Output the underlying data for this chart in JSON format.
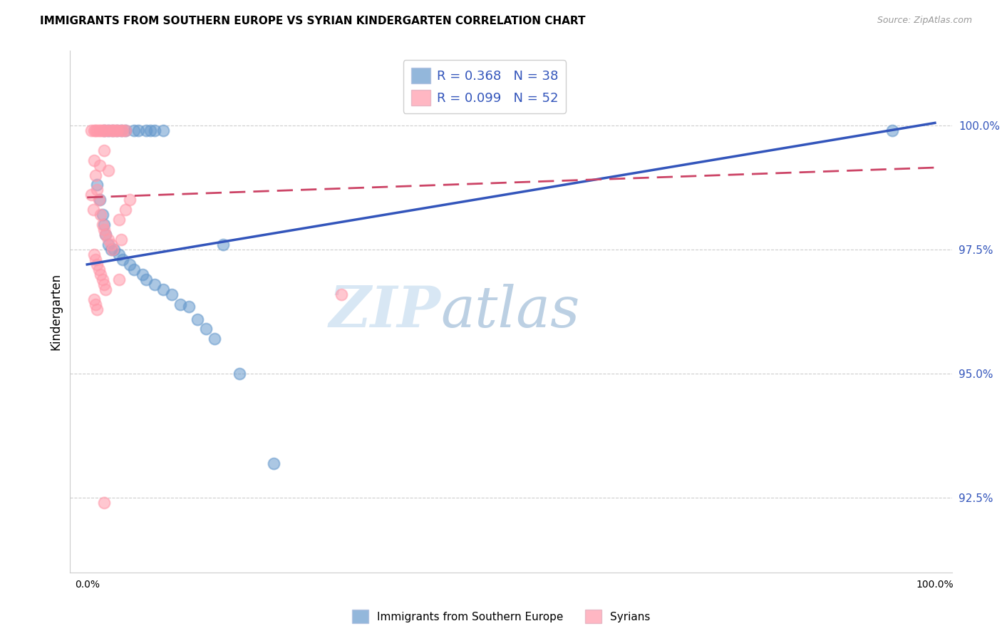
{
  "title": "IMMIGRANTS FROM SOUTHERN EUROPE VS SYRIAN KINDERGARTEN CORRELATION CHART",
  "source": "Source: ZipAtlas.com",
  "ylabel": "Kindergarten",
  "ytick_values": [
    92.5,
    95.0,
    97.5,
    100.0
  ],
  "ylim": [
    91.0,
    101.5
  ],
  "xlim": [
    -0.02,
    1.02
  ],
  "legend_blue_label": "R = 0.368   N = 38",
  "legend_pink_label": "R = 0.099   N = 52",
  "legend_blue_bottom": "Immigrants from Southern Europe",
  "legend_pink_bottom": "Syrians",
  "blue_color": "#6699cc",
  "pink_color": "#ff99aa",
  "trend_blue": "#3355bb",
  "trend_pink": "#cc4466",
  "watermark_zip": "ZIP",
  "watermark_atlas": "atlas",
  "blue_scatter": [
    [
      0.02,
      99.9
    ],
    [
      0.025,
      99.9
    ],
    [
      0.03,
      99.9
    ],
    [
      0.035,
      99.9
    ],
    [
      0.04,
      99.9
    ],
    [
      0.045,
      99.9
    ],
    [
      0.055,
      99.9
    ],
    [
      0.06,
      99.9
    ],
    [
      0.07,
      99.9
    ],
    [
      0.075,
      99.9
    ],
    [
      0.08,
      99.9
    ],
    [
      0.09,
      99.9
    ],
    [
      0.018,
      98.2
    ],
    [
      0.015,
      98.5
    ],
    [
      0.022,
      97.8
    ],
    [
      0.028,
      97.5
    ],
    [
      0.032,
      97.5
    ],
    [
      0.038,
      97.4
    ],
    [
      0.042,
      97.3
    ],
    [
      0.05,
      97.2
    ],
    [
      0.055,
      97.1
    ],
    [
      0.065,
      97.0
    ],
    [
      0.07,
      96.9
    ],
    [
      0.08,
      96.8
    ],
    [
      0.09,
      96.7
    ],
    [
      0.1,
      96.6
    ],
    [
      0.11,
      96.4
    ],
    [
      0.12,
      96.35
    ],
    [
      0.13,
      96.1
    ],
    [
      0.14,
      95.9
    ],
    [
      0.15,
      95.7
    ],
    [
      0.22,
      93.2
    ],
    [
      0.95,
      99.9
    ],
    [
      0.18,
      95.0
    ],
    [
      0.012,
      98.8
    ],
    [
      0.02,
      98.0
    ],
    [
      0.025,
      97.6
    ],
    [
      0.16,
      97.6
    ]
  ],
  "pink_scatter": [
    [
      0.005,
      99.9
    ],
    [
      0.008,
      99.9
    ],
    [
      0.01,
      99.9
    ],
    [
      0.012,
      99.9
    ],
    [
      0.014,
      99.9
    ],
    [
      0.016,
      99.9
    ],
    [
      0.018,
      99.9
    ],
    [
      0.02,
      99.9
    ],
    [
      0.022,
      99.9
    ],
    [
      0.025,
      99.9
    ],
    [
      0.028,
      99.9
    ],
    [
      0.03,
      99.9
    ],
    [
      0.032,
      99.9
    ],
    [
      0.034,
      99.9
    ],
    [
      0.036,
      99.9
    ],
    [
      0.008,
      99.3
    ],
    [
      0.01,
      99.0
    ],
    [
      0.012,
      98.7
    ],
    [
      0.014,
      98.5
    ],
    [
      0.016,
      98.2
    ],
    [
      0.018,
      98.0
    ],
    [
      0.02,
      97.9
    ],
    [
      0.022,
      97.8
    ],
    [
      0.025,
      97.7
    ],
    [
      0.028,
      97.6
    ],
    [
      0.008,
      97.4
    ],
    [
      0.01,
      97.3
    ],
    [
      0.012,
      97.2
    ],
    [
      0.014,
      97.1
    ],
    [
      0.016,
      97.0
    ],
    [
      0.018,
      96.9
    ],
    [
      0.02,
      96.8
    ],
    [
      0.022,
      96.7
    ],
    [
      0.008,
      96.5
    ],
    [
      0.01,
      96.4
    ],
    [
      0.012,
      96.3
    ],
    [
      0.02,
      99.5
    ],
    [
      0.015,
      99.2
    ],
    [
      0.025,
      99.1
    ],
    [
      0.05,
      98.5
    ],
    [
      0.045,
      98.3
    ],
    [
      0.038,
      98.1
    ],
    [
      0.04,
      97.7
    ],
    [
      0.03,
      97.5
    ],
    [
      0.038,
      96.9
    ],
    [
      0.04,
      99.9
    ],
    [
      0.042,
      99.9
    ],
    [
      0.045,
      99.9
    ],
    [
      0.3,
      96.6
    ],
    [
      0.02,
      92.4
    ],
    [
      0.005,
      98.6
    ],
    [
      0.007,
      98.3
    ]
  ],
  "blue_trend_x": [
    0.0,
    1.0
  ],
  "blue_trend_y": [
    97.2,
    100.05
  ],
  "pink_trend_x": [
    0.0,
    1.0
  ],
  "pink_trend_y": [
    98.55,
    99.15
  ]
}
